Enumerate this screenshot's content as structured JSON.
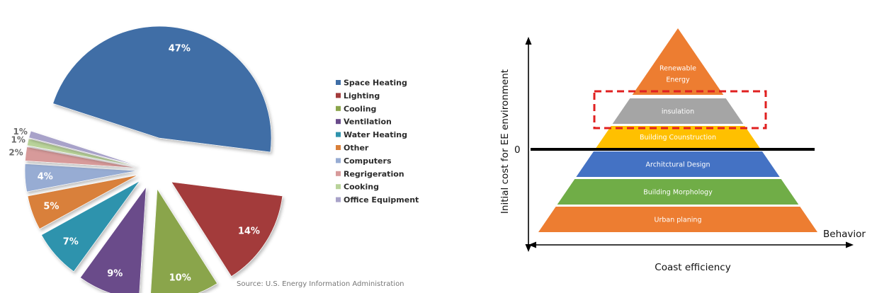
{
  "chart_data": [
    {
      "type": "pie",
      "exploded": true,
      "categories": [
        "Space Heating",
        "Lighting",
        "Cooling",
        "Ventilation",
        "Water Heating",
        "Other",
        "Computers",
        "Regrigeration",
        "Cooking",
        "Office Equipment"
      ],
      "values": [
        47,
        14,
        10,
        9,
        7,
        5,
        4,
        2,
        1,
        1
      ],
      "labels": [
        "47%",
        "14%",
        "10%",
        "9%",
        "7%",
        "5%",
        "4%",
        "2%",
        "1%",
        "1%"
      ],
      "colors": [
        "#3f6ea6",
        "#a33b3b",
        "#8aa54b",
        "#6a4b8a",
        "#2f93ad",
        "#d9803a",
        "#97acd3",
        "#d79a9a",
        "#b9d39a",
        "#a8a2c9"
      ],
      "legend_position": "right",
      "source": "Source: U.S. Energy Information Administration"
    },
    {
      "type": "diagram",
      "levels": [
        {
          "label_lines": [
            "Renewable",
            "Energy"
          ],
          "color": "#ed7d31"
        },
        {
          "label_lines": [
            "insulation"
          ],
          "color": "#a5a5a5",
          "highlighted": true
        },
        {
          "label_lines": [
            "Building Counstruction"
          ],
          "color": "#ffc000"
        },
        {
          "label_lines": [
            "Architctural Design"
          ],
          "color": "#4472c4"
        },
        {
          "label_lines": [
            "Building Morphology"
          ],
          "color": "#70ad47"
        },
        {
          "label_lines": [
            "Urban planing"
          ],
          "color": "#ed7d31"
        }
      ],
      "ylabel": "Initial cost for EE environment",
      "xlabel": "Coast efficiency",
      "zero_label": "0",
      "right_label": "Behavior",
      "highlight_color": "#e02020"
    }
  ]
}
